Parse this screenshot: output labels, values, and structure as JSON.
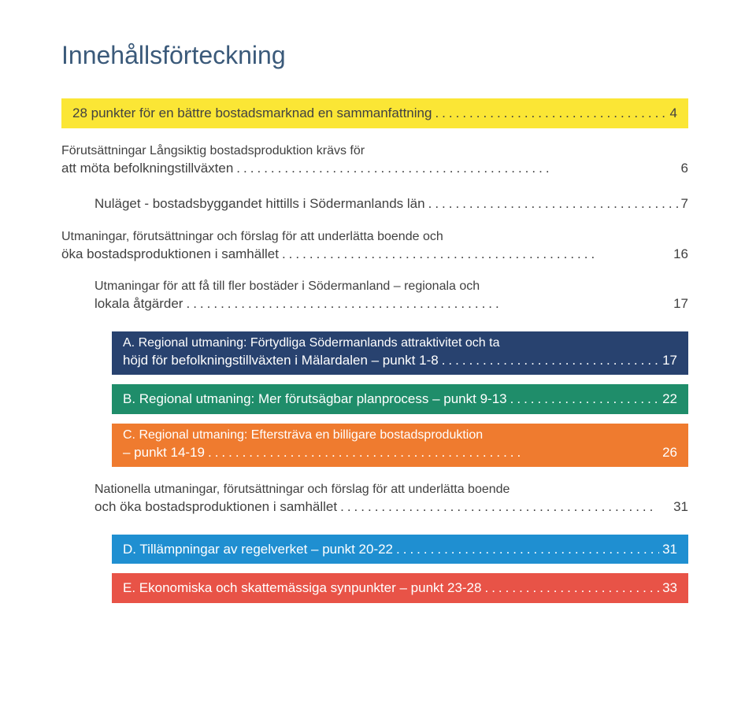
{
  "title": "Innehållsförteckning",
  "colors": {
    "title": "#3b5a7a",
    "text": "#414141",
    "yellow": "#fbe635",
    "blue": "#28426f",
    "green": "#1f8d6a",
    "orange": "#ef7b2f",
    "dblue": "#1f8fd1",
    "red": "#e85347"
  },
  "entries": {
    "e1": {
      "text": "28 punkter för en bättre bostadsmarknad en sammanfattning",
      "page": "4"
    },
    "e2": {
      "line1": "Förutsättningar Långsiktig bostadsproduktion krävs för",
      "line2": "att möta befolkningstillväxten",
      "page": "6"
    },
    "e3": {
      "text": "Nuläget - bostadsbyggandet hittills i Södermanlands län",
      "page": "7"
    },
    "e4": {
      "line1": "Utmaningar, förutsättningar och förslag för att underlätta boende och",
      "line2": "öka bostadsproduktionen i samhället",
      "page": "16"
    },
    "e5": {
      "line1": "Utmaningar för att få till fler bostäder i Södermanland – regionala och",
      "line2": "lokala åtgärder",
      "page": "17"
    },
    "e6": {
      "line1": "A. Regional utmaning: Förtydliga Södermanlands attraktivitet och ta",
      "line2": "höjd för befolkningstillväxten i Mälardalen – punkt 1-8",
      "page": "17"
    },
    "e7": {
      "text": "B. Regional utmaning: Mer förutsägbar planprocess – punkt 9-13",
      "page": "22"
    },
    "e8": {
      "line1": "C. Regional utmaning: Eftersträva en billigare bostadsproduktion",
      "line2": "– punkt 14-19",
      "page": "26"
    },
    "e9": {
      "line1": "Nationella utmaningar, förutsättningar och förslag för att underlätta boende",
      "line2": "och öka bostadsproduktionen i samhället",
      "page": "31"
    },
    "e10": {
      "text": "D. Tillämpningar av regelverket – punkt 20-22",
      "page": "31"
    },
    "e11": {
      "text": "E. Ekonomiska och skattemässiga synpunkter – punkt 23-28",
      "page": "33"
    }
  }
}
